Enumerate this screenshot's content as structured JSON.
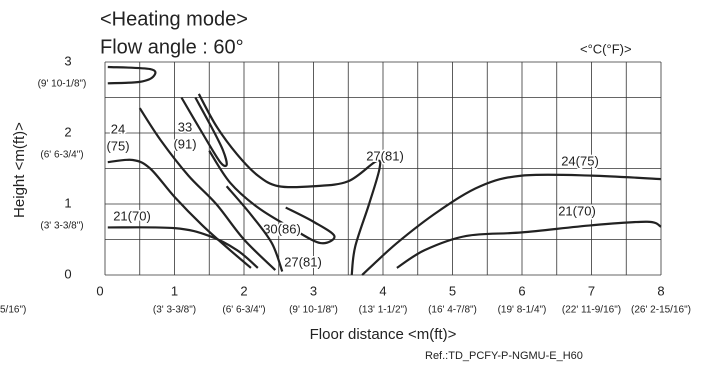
{
  "chart_data": {
    "type": "contour",
    "title": "<Heating mode>",
    "subtitle": "Flow angle : 60°",
    "unit_note": "<°C(°F)>",
    "xlabel": "Floor distance <m(ft)>",
    "ylabel": "Height <m(ft)>",
    "reference": "Ref.:TD_PCFY-P-NGMU-E_H60",
    "xlim": [
      0,
      8
    ],
    "ylim": [
      0,
      3
    ],
    "xticks": [
      0,
      1,
      2,
      3,
      4,
      5,
      6,
      7,
      8
    ],
    "xtick_sublabels": [
      "5/16\")",
      "(3' 3-3/8\")",
      "(6' 6-3/4\")",
      "(9' 10-1/8\")",
      "(13' 1-1/2\")",
      "(16' 4-7/8\")",
      "(19' 8-1/4\")",
      "(22' 11-9/16\")",
      "(26' 2-15/16\")"
    ],
    "yticks": [
      0,
      1,
      2,
      3
    ],
    "ytick_sublabels": [
      null,
      "(3' 3-3/8\")",
      "(6' 6-3/4\")",
      "(9' 10-1/8\")"
    ],
    "xgrid": [
      0,
      0.5,
      1,
      1.5,
      2,
      2.5,
      3,
      3.5,
      4,
      4.5,
      5,
      5.5,
      6,
      6.5,
      7,
      7.5,
      8
    ],
    "ygrid": [
      0,
      0.5,
      1,
      1.5,
      2,
      2.5,
      3
    ],
    "color": "#222222",
    "contours": [
      {
        "x": [
          0.04,
          0.65,
          0.7,
          0.5,
          0.04
        ],
        "y": [
          2.93,
          2.9,
          2.8,
          2.72,
          2.7
        ]
      },
      {
        "label": [
          "24",
          "(75)"
        ],
        "x": [
          0.04,
          0.4,
          0.65,
          1.0,
          1.4,
          1.8,
          2.1
        ],
        "y": [
          1.59,
          1.62,
          1.5,
          1.1,
          0.7,
          0.35,
          0.1
        ]
      },
      {
        "x": [
          0.5,
          0.8,
          1.2,
          1.6,
          2.0,
          2.45
        ],
        "y": [
          2.35,
          1.9,
          1.4,
          1.0,
          0.5,
          0.07
        ]
      },
      {
        "label": [
          "33",
          "(91)"
        ],
        "x": [
          1.1,
          1.4,
          1.65,
          1.75,
          1.7,
          1.55,
          1.3
        ],
        "y": [
          2.5,
          2.0,
          1.6,
          1.55,
          1.75,
          2.05,
          2.5
        ]
      },
      {
        "label": [
          "27(81)"
        ],
        "x": [
          1.35,
          1.6,
          1.9,
          2.2,
          2.5,
          3.0,
          3.5,
          3.9,
          3.95,
          3.8,
          3.6,
          3.55
        ],
        "y": [
          2.55,
          2.1,
          1.7,
          1.4,
          1.25,
          1.25,
          1.32,
          1.6,
          1.5,
          1.0,
          0.4,
          0
        ]
      },
      {
        "label": [
          "30(86)"
        ],
        "x": [
          1.5,
          1.8,
          2.2,
          2.7,
          3.1,
          3.3,
          3.0,
          2.6
        ],
        "y": [
          1.75,
          1.3,
          0.95,
          0.65,
          0.45,
          0.55,
          0.75,
          0.95
        ]
      },
      {
        "label": [
          "27(81)"
        ],
        "x": [
          1.75,
          2.1,
          2.4,
          2.55
        ],
        "y": [
          1.25,
          0.85,
          0.45,
          0.05
        ]
      },
      {
        "label": [
          "21(70)"
        ],
        "x": [
          0.04,
          1.0,
          1.5,
          1.9,
          2.2
        ],
        "y": [
          0.67,
          0.66,
          0.55,
          0.35,
          0.1
        ]
      },
      {
        "label": [
          "24(75)"
        ],
        "x": [
          3.7,
          4.2,
          4.8,
          5.4,
          6.0,
          7.0,
          8.0
        ],
        "y": [
          0,
          0.45,
          0.9,
          1.25,
          1.4,
          1.4,
          1.35
        ]
      },
      {
        "label": [
          "21(70)"
        ],
        "x": [
          4.2,
          4.6,
          5.2,
          6.0,
          7.0,
          7.8,
          8.0
        ],
        "y": [
          0.1,
          0.35,
          0.55,
          0.6,
          0.7,
          0.75,
          0.68
        ]
      }
    ]
  }
}
